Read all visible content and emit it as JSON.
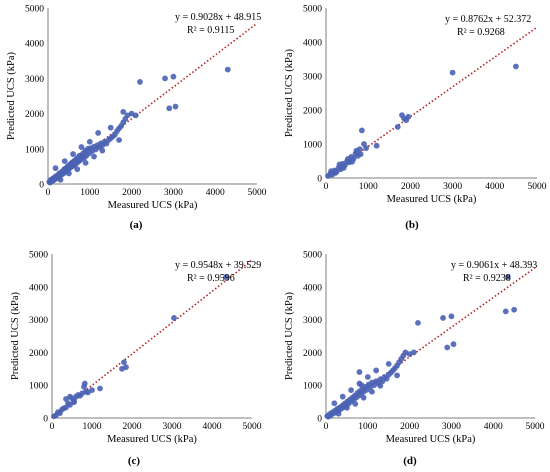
{
  "chart_data": [
    {
      "type": "scatter",
      "panel_label": "(a)",
      "xlabel": "Measured UCS (kPa)",
      "ylabel": "Predicted UCS (kPa)",
      "xlim": [
        0,
        5000
      ],
      "ylim": [
        0,
        5000
      ],
      "xticks": [
        "0",
        "1000",
        "2000",
        "3000",
        "4000",
        "5000"
      ],
      "yticks": [
        "0",
        "1000",
        "2000",
        "3000",
        "4000",
        "5000"
      ],
      "grid": false,
      "marker_color": "#4a62b4",
      "trendline_color": "#b22222",
      "equation": "y = 0.9028x + 48.915",
      "r2": "R² = 0.9115",
      "trend": {
        "slope": 0.9028,
        "intercept": 48.915
      },
      "points": [
        [
          30,
          60
        ],
        [
          50,
          40
        ],
        [
          70,
          120
        ],
        [
          90,
          80
        ],
        [
          110,
          150
        ],
        [
          130,
          100
        ],
        [
          150,
          180
        ],
        [
          170,
          140
        ],
        [
          190,
          220
        ],
        [
          210,
          170
        ],
        [
          230,
          250
        ],
        [
          250,
          200
        ],
        [
          270,
          300
        ],
        [
          290,
          240
        ],
        [
          310,
          330
        ],
        [
          330,
          270
        ],
        [
          350,
          360
        ],
        [
          370,
          300
        ],
        [
          390,
          420
        ],
        [
          410,
          350
        ],
        [
          430,
          450
        ],
        [
          450,
          380
        ],
        [
          470,
          500
        ],
        [
          490,
          420
        ],
        [
          510,
          540
        ],
        [
          530,
          460
        ],
        [
          550,
          580
        ],
        [
          570,
          500
        ],
        [
          590,
          620
        ],
        [
          610,
          520
        ],
        [
          630,
          660
        ],
        [
          650,
          560
        ],
        [
          670,
          700
        ],
        [
          690,
          600
        ],
        [
          710,
          740
        ],
        [
          730,
          640
        ],
        [
          750,
          800
        ],
        [
          770,
          680
        ],
        [
          790,
          820
        ],
        [
          820,
          720
        ],
        [
          850,
          880
        ],
        [
          880,
          760
        ],
        [
          900,
          950
        ],
        [
          930,
          820
        ],
        [
          960,
          1000
        ],
        [
          990,
          880
        ],
        [
          1020,
          1020
        ],
        [
          1060,
          940
        ],
        [
          1100,
          1060
        ],
        [
          1140,
          980
        ],
        [
          1180,
          1100
        ],
        [
          1220,
          1040
        ],
        [
          1260,
          1150
        ],
        [
          1300,
          1100
        ],
        [
          1350,
          1200
        ],
        [
          1400,
          1150
        ],
        [
          1450,
          1250
        ],
        [
          1500,
          1300
        ],
        [
          1550,
          1350
        ],
        [
          1600,
          1400
        ],
        [
          1650,
          1500
        ],
        [
          1700,
          1580
        ],
        [
          1750,
          1650
        ],
        [
          1800,
          1750
        ],
        [
          1850,
          1850
        ],
        [
          1900,
          1950
        ],
        [
          2000,
          2000
        ],
        [
          2100,
          1950
        ],
        [
          2200,
          2900
        ],
        [
          2800,
          3000
        ],
        [
          2900,
          2150
        ],
        [
          3000,
          3050
        ],
        [
          3050,
          2200
        ],
        [
          4300,
          3250
        ],
        [
          180,
          450
        ],
        [
          400,
          650
        ],
        [
          600,
          850
        ],
        [
          800,
          1050
        ],
        [
          1000,
          1200
        ],
        [
          1200,
          1450
        ],
        [
          1500,
          1600
        ],
        [
          1800,
          2050
        ],
        [
          300,
          120
        ],
        [
          500,
          300
        ],
        [
          700,
          420
        ],
        [
          900,
          600
        ],
        [
          1100,
          780
        ],
        [
          1300,
          950
        ],
        [
          1700,
          1250
        ]
      ]
    },
    {
      "type": "scatter",
      "panel_label": "(b)",
      "xlabel": "Measured UCS (kPa)",
      "ylabel": "Predicted UCS (kPa)",
      "xlim": [
        0,
        5000
      ],
      "ylim": [
        0,
        5000
      ],
      "xticks": [
        "0",
        "1000",
        "2000",
        "3000",
        "4000",
        "5000"
      ],
      "yticks": [
        "0",
        "1000",
        "2000",
        "3000",
        "4000",
        "5000"
      ],
      "grid": false,
      "marker_color": "#4a62b4",
      "trendline_color": "#b22222",
      "equation": "y = 0.8762x + 52.372",
      "r2": "R² = 0.9268",
      "trend": {
        "slope": 0.8762,
        "intercept": 52.372
      },
      "points": [
        [
          50,
          60
        ],
        [
          100,
          120
        ],
        [
          150,
          100
        ],
        [
          200,
          220
        ],
        [
          250,
          180
        ],
        [
          300,
          300
        ],
        [
          350,
          260
        ],
        [
          400,
          420
        ],
        [
          450,
          380
        ],
        [
          500,
          500
        ],
        [
          550,
          460
        ],
        [
          600,
          620
        ],
        [
          650,
          560
        ],
        [
          700,
          720
        ],
        [
          750,
          650
        ],
        [
          800,
          850
        ],
        [
          850,
          1400
        ],
        [
          900,
          1000
        ],
        [
          950,
          880
        ],
        [
          1200,
          950
        ],
        [
          1700,
          1500
        ],
        [
          1800,
          1850
        ],
        [
          1850,
          1750
        ],
        [
          1900,
          1700
        ],
        [
          1950,
          1800
        ],
        [
          3000,
          3100
        ],
        [
          4500,
          3280
        ],
        [
          120,
          200
        ],
        [
          220,
          150
        ],
        [
          320,
          400
        ],
        [
          420,
          300
        ],
        [
          520,
          560
        ],
        [
          620,
          480
        ],
        [
          720,
          800
        ],
        [
          820,
          700
        ]
      ]
    },
    {
      "type": "scatter",
      "panel_label": "(c)",
      "xlabel": "Measured UCS (kPa)",
      "ylabel": "Predicted UCS (kPa)",
      "xlim": [
        0,
        5000
      ],
      "ylim": [
        0,
        5000
      ],
      "xticks": [
        "0",
        "1000",
        "2000",
        "3000",
        "4000",
        "5000"
      ],
      "yticks": [
        "0",
        "1000",
        "2000",
        "3000",
        "4000",
        "5000"
      ],
      "grid": false,
      "marker_color": "#4a62b4",
      "trendline_color": "#b22222",
      "equation": "y = 0.9548x + 39.529",
      "r2": "R² = 0.9596",
      "trend": {
        "slope": 0.9548,
        "intercept": 39.529
      },
      "points": [
        [
          50,
          50
        ],
        [
          100,
          80
        ],
        [
          150,
          180
        ],
        [
          200,
          150
        ],
        [
          250,
          260
        ],
        [
          300,
          300
        ],
        [
          350,
          320
        ],
        [
          400,
          450
        ],
        [
          450,
          400
        ],
        [
          500,
          600
        ],
        [
          550,
          520
        ],
        [
          600,
          650
        ],
        [
          650,
          700
        ],
        [
          700,
          680
        ],
        [
          750,
          750
        ],
        [
          800,
          950
        ],
        [
          820,
          1050
        ],
        [
          850,
          800
        ],
        [
          900,
          780
        ],
        [
          1000,
          850
        ],
        [
          1200,
          900
        ],
        [
          1750,
          1500
        ],
        [
          1800,
          1700
        ],
        [
          1850,
          1550
        ],
        [
          3050,
          3050
        ],
        [
          4350,
          4300
        ],
        [
          350,
          580
        ],
        [
          450,
          650
        ],
        [
          550,
          480
        ]
      ]
    },
    {
      "type": "scatter",
      "panel_label": "(d)",
      "xlabel": "Measured UCS (kPa)",
      "ylabel": "Predicted UCS (kPa)",
      "xlim": [
        0,
        5000
      ],
      "ylim": [
        0,
        5000
      ],
      "xticks": [
        "0",
        "1000",
        "2000",
        "3000",
        "4000",
        "5000"
      ],
      "yticks": [
        "0",
        "1000",
        "2000",
        "3000",
        "4000",
        "5000"
      ],
      "grid": false,
      "marker_color": "#4a62b4",
      "trendline_color": "#b22222",
      "equation": "y = 0.9061x + 48.393",
      "r2": "R² = 0.9238",
      "trend": {
        "slope": 0.9061,
        "intercept": 48.393
      },
      "points": [
        [
          30,
          60
        ],
        [
          60,
          40
        ],
        [
          90,
          120
        ],
        [
          120,
          90
        ],
        [
          150,
          170
        ],
        [
          180,
          140
        ],
        [
          210,
          220
        ],
        [
          240,
          180
        ],
        [
          270,
          280
        ],
        [
          300,
          230
        ],
        [
          330,
          320
        ],
        [
          360,
          280
        ],
        [
          390,
          380
        ],
        [
          420,
          330
        ],
        [
          450,
          440
        ],
        [
          480,
          380
        ],
        [
          510,
          500
        ],
        [
          540,
          440
        ],
        [
          570,
          560
        ],
        [
          600,
          500
        ],
        [
          630,
          620
        ],
        [
          660,
          560
        ],
        [
          690,
          680
        ],
        [
          720,
          620
        ],
        [
          750,
          760
        ],
        [
          780,
          680
        ],
        [
          810,
          820
        ],
        [
          840,
          740
        ],
        [
          870,
          880
        ],
        [
          900,
          800
        ],
        [
          940,
          950
        ],
        [
          980,
          860
        ],
        [
          1020,
          1020
        ],
        [
          1060,
          940
        ],
        [
          1100,
          1080
        ],
        [
          1150,
          1000
        ],
        [
          1200,
          1120
        ],
        [
          1250,
          1060
        ],
        [
          1300,
          1180
        ],
        [
          1350,
          1120
        ],
        [
          1400,
          1250
        ],
        [
          1450,
          1200
        ],
        [
          1500,
          1320
        ],
        [
          1550,
          1380
        ],
        [
          1600,
          1450
        ],
        [
          1650,
          1520
        ],
        [
          1700,
          1600
        ],
        [
          1750,
          1700
        ],
        [
          1800,
          1800
        ],
        [
          1850,
          1900
        ],
        [
          1900,
          2000
        ],
        [
          2000,
          1950
        ],
        [
          2100,
          2000
        ],
        [
          2200,
          2900
        ],
        [
          2800,
          3050
        ],
        [
          2900,
          2150
        ],
        [
          3000,
          3100
        ],
        [
          3050,
          2250
        ],
        [
          4300,
          3250
        ],
        [
          4350,
          4300
        ],
        [
          4500,
          3300
        ],
        [
          200,
          450
        ],
        [
          400,
          650
        ],
        [
          600,
          850
        ],
        [
          800,
          1050
        ],
        [
          1000,
          1250
        ],
        [
          1200,
          1450
        ],
        [
          1500,
          1650
        ],
        [
          300,
          130
        ],
        [
          500,
          310
        ],
        [
          700,
          430
        ],
        [
          900,
          620
        ],
        [
          1100,
          800
        ],
        [
          1300,
          980
        ],
        [
          1700,
          1300
        ],
        [
          800,
          1400
        ],
        [
          850,
          1000
        ]
      ]
    }
  ]
}
